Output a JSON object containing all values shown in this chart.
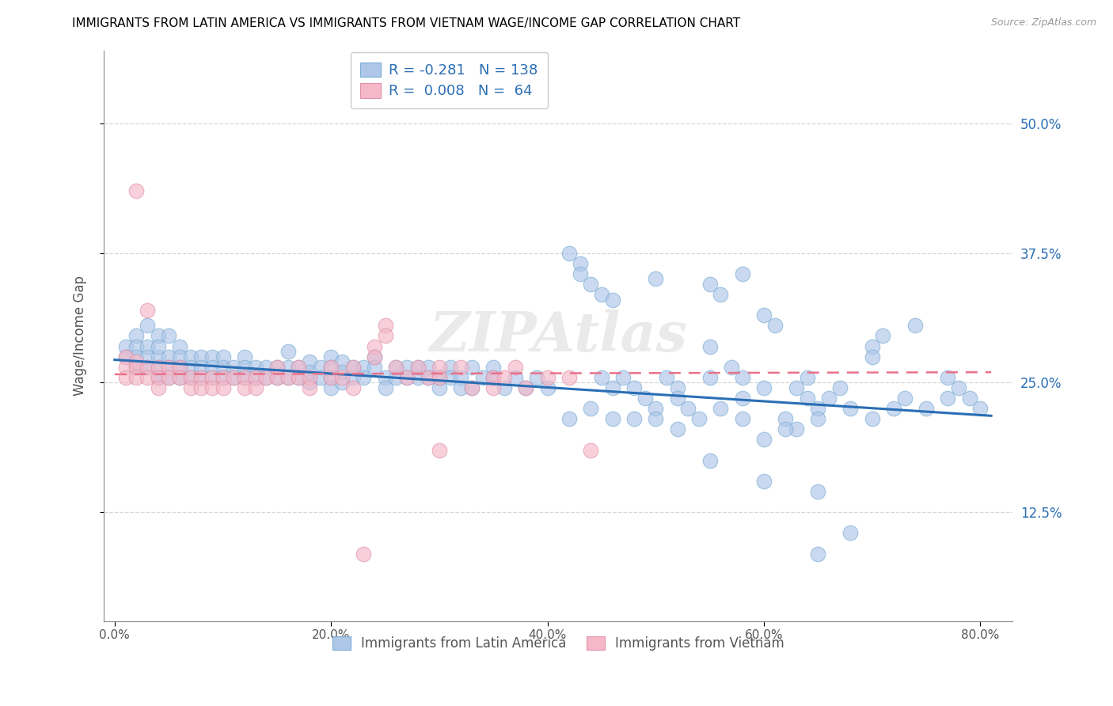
{
  "title": "IMMIGRANTS FROM LATIN AMERICA VS IMMIGRANTS FROM VIETNAM WAGE/INCOME GAP CORRELATION CHART",
  "source": "Source: ZipAtlas.com",
  "ylabel": "Wage/Income Gap",
  "xlabel_ticks": [
    "0.0%",
    "20.0%",
    "40.0%",
    "60.0%",
    "80.0%"
  ],
  "xlabel_vals": [
    0.0,
    0.2,
    0.4,
    0.6,
    0.8
  ],
  "ytick_labels": [
    "12.5%",
    "25.0%",
    "37.5%",
    "50.0%"
  ],
  "ytick_vals": [
    0.125,
    0.25,
    0.375,
    0.5
  ],
  "xlim": [
    -0.01,
    0.83
  ],
  "ylim": [
    0.02,
    0.57
  ],
  "legend_label1": "Immigrants from Latin America",
  "legend_label2": "Immigrants from Vietnam",
  "blue_color": "#aec6e8",
  "pink_color": "#f4b8c8",
  "blue_line_color": "#2a6eb5",
  "pink_line_color": "#e8728a",
  "watermark": "ZIPAtlas",
  "title_fontsize": 11,
  "source_fontsize": 9,
  "blue_scatter": [
    [
      0.01,
      0.285
    ],
    [
      0.01,
      0.275
    ],
    [
      0.02,
      0.295
    ],
    [
      0.02,
      0.285
    ],
    [
      0.02,
      0.275
    ],
    [
      0.02,
      0.265
    ],
    [
      0.03,
      0.305
    ],
    [
      0.03,
      0.285
    ],
    [
      0.03,
      0.275
    ],
    [
      0.03,
      0.265
    ],
    [
      0.04,
      0.295
    ],
    [
      0.04,
      0.275
    ],
    [
      0.04,
      0.265
    ],
    [
      0.04,
      0.255
    ],
    [
      0.04,
      0.285
    ],
    [
      0.05,
      0.295
    ],
    [
      0.05,
      0.275
    ],
    [
      0.05,
      0.265
    ],
    [
      0.05,
      0.255
    ],
    [
      0.06,
      0.285
    ],
    [
      0.06,
      0.275
    ],
    [
      0.06,
      0.265
    ],
    [
      0.06,
      0.255
    ],
    [
      0.07,
      0.275
    ],
    [
      0.07,
      0.265
    ],
    [
      0.07,
      0.255
    ],
    [
      0.08,
      0.275
    ],
    [
      0.08,
      0.265
    ],
    [
      0.08,
      0.255
    ],
    [
      0.09,
      0.275
    ],
    [
      0.09,
      0.265
    ],
    [
      0.09,
      0.255
    ],
    [
      0.1,
      0.275
    ],
    [
      0.1,
      0.265
    ],
    [
      0.1,
      0.255
    ],
    [
      0.11,
      0.265
    ],
    [
      0.11,
      0.255
    ],
    [
      0.12,
      0.275
    ],
    [
      0.12,
      0.265
    ],
    [
      0.12,
      0.255
    ],
    [
      0.13,
      0.265
    ],
    [
      0.13,
      0.255
    ],
    [
      0.14,
      0.265
    ],
    [
      0.14,
      0.255
    ],
    [
      0.15,
      0.265
    ],
    [
      0.15,
      0.255
    ],
    [
      0.16,
      0.28
    ],
    [
      0.16,
      0.265
    ],
    [
      0.16,
      0.255
    ],
    [
      0.17,
      0.265
    ],
    [
      0.17,
      0.255
    ],
    [
      0.18,
      0.27
    ],
    [
      0.18,
      0.26
    ],
    [
      0.18,
      0.25
    ],
    [
      0.19,
      0.265
    ],
    [
      0.19,
      0.255
    ],
    [
      0.2,
      0.275
    ],
    [
      0.2,
      0.265
    ],
    [
      0.2,
      0.255
    ],
    [
      0.2,
      0.245
    ],
    [
      0.21,
      0.27
    ],
    [
      0.21,
      0.26
    ],
    [
      0.21,
      0.25
    ],
    [
      0.22,
      0.265
    ],
    [
      0.22,
      0.255
    ],
    [
      0.23,
      0.265
    ],
    [
      0.23,
      0.255
    ],
    [
      0.24,
      0.275
    ],
    [
      0.24,
      0.265
    ],
    [
      0.25,
      0.255
    ],
    [
      0.25,
      0.245
    ],
    [
      0.26,
      0.265
    ],
    [
      0.26,
      0.255
    ],
    [
      0.27,
      0.265
    ],
    [
      0.27,
      0.255
    ],
    [
      0.28,
      0.265
    ],
    [
      0.28,
      0.255
    ],
    [
      0.29,
      0.265
    ],
    [
      0.29,
      0.255
    ],
    [
      0.3,
      0.245
    ],
    [
      0.3,
      0.255
    ],
    [
      0.31,
      0.265
    ],
    [
      0.31,
      0.255
    ],
    [
      0.32,
      0.255
    ],
    [
      0.32,
      0.245
    ],
    [
      0.33,
      0.265
    ],
    [
      0.33,
      0.245
    ],
    [
      0.34,
      0.255
    ],
    [
      0.35,
      0.265
    ],
    [
      0.35,
      0.255
    ],
    [
      0.36,
      0.245
    ],
    [
      0.37,
      0.255
    ],
    [
      0.38,
      0.245
    ],
    [
      0.39,
      0.255
    ],
    [
      0.4,
      0.245
    ],
    [
      0.42,
      0.375
    ],
    [
      0.43,
      0.365
    ],
    [
      0.43,
      0.355
    ],
    [
      0.44,
      0.345
    ],
    [
      0.45,
      0.335
    ],
    [
      0.45,
      0.255
    ],
    [
      0.46,
      0.33
    ],
    [
      0.46,
      0.245
    ],
    [
      0.47,
      0.255
    ],
    [
      0.48,
      0.245
    ],
    [
      0.49,
      0.235
    ],
    [
      0.5,
      0.35
    ],
    [
      0.5,
      0.225
    ],
    [
      0.51,
      0.255
    ],
    [
      0.52,
      0.245
    ],
    [
      0.52,
      0.235
    ],
    [
      0.53,
      0.225
    ],
    [
      0.55,
      0.345
    ],
    [
      0.55,
      0.285
    ],
    [
      0.55,
      0.255
    ],
    [
      0.56,
      0.335
    ],
    [
      0.57,
      0.265
    ],
    [
      0.58,
      0.355
    ],
    [
      0.58,
      0.255
    ],
    [
      0.58,
      0.235
    ],
    [
      0.6,
      0.315
    ],
    [
      0.6,
      0.245
    ],
    [
      0.61,
      0.305
    ],
    [
      0.62,
      0.215
    ],
    [
      0.63,
      0.205
    ],
    [
      0.63,
      0.245
    ],
    [
      0.64,
      0.255
    ],
    [
      0.64,
      0.235
    ],
    [
      0.65,
      0.145
    ],
    [
      0.65,
      0.225
    ],
    [
      0.65,
      0.215
    ],
    [
      0.66,
      0.235
    ],
    [
      0.67,
      0.245
    ],
    [
      0.68,
      0.225
    ],
    [
      0.7,
      0.285
    ],
    [
      0.7,
      0.275
    ],
    [
      0.7,
      0.215
    ],
    [
      0.71,
      0.295
    ],
    [
      0.72,
      0.225
    ],
    [
      0.73,
      0.235
    ],
    [
      0.74,
      0.305
    ],
    [
      0.75,
      0.225
    ],
    [
      0.77,
      0.235
    ],
    [
      0.77,
      0.255
    ],
    [
      0.78,
      0.245
    ],
    [
      0.79,
      0.235
    ],
    [
      0.8,
      0.225
    ],
    [
      0.55,
      0.175
    ],
    [
      0.6,
      0.155
    ],
    [
      0.65,
      0.085
    ],
    [
      0.68,
      0.105
    ],
    [
      0.42,
      0.215
    ],
    [
      0.44,
      0.225
    ],
    [
      0.46,
      0.215
    ],
    [
      0.48,
      0.215
    ],
    [
      0.5,
      0.215
    ],
    [
      0.52,
      0.205
    ],
    [
      0.54,
      0.215
    ],
    [
      0.56,
      0.225
    ],
    [
      0.58,
      0.215
    ],
    [
      0.6,
      0.195
    ],
    [
      0.62,
      0.205
    ]
  ],
  "pink_scatter": [
    [
      0.01,
      0.275
    ],
    [
      0.01,
      0.265
    ],
    [
      0.01,
      0.255
    ],
    [
      0.02,
      0.435
    ],
    [
      0.02,
      0.27
    ],
    [
      0.02,
      0.265
    ],
    [
      0.02,
      0.255
    ],
    [
      0.03,
      0.32
    ],
    [
      0.03,
      0.265
    ],
    [
      0.03,
      0.255
    ],
    [
      0.04,
      0.265
    ],
    [
      0.04,
      0.255
    ],
    [
      0.04,
      0.245
    ],
    [
      0.05,
      0.265
    ],
    [
      0.05,
      0.255
    ],
    [
      0.06,
      0.265
    ],
    [
      0.06,
      0.255
    ],
    [
      0.07,
      0.255
    ],
    [
      0.07,
      0.245
    ],
    [
      0.08,
      0.255
    ],
    [
      0.08,
      0.245
    ],
    [
      0.09,
      0.255
    ],
    [
      0.09,
      0.245
    ],
    [
      0.1,
      0.255
    ],
    [
      0.1,
      0.245
    ],
    [
      0.11,
      0.255
    ],
    [
      0.12,
      0.255
    ],
    [
      0.12,
      0.245
    ],
    [
      0.13,
      0.255
    ],
    [
      0.13,
      0.245
    ],
    [
      0.14,
      0.255
    ],
    [
      0.15,
      0.265
    ],
    [
      0.15,
      0.255
    ],
    [
      0.16,
      0.255
    ],
    [
      0.17,
      0.265
    ],
    [
      0.17,
      0.255
    ],
    [
      0.18,
      0.255
    ],
    [
      0.18,
      0.245
    ],
    [
      0.2,
      0.255
    ],
    [
      0.2,
      0.265
    ],
    [
      0.21,
      0.255
    ],
    [
      0.22,
      0.265
    ],
    [
      0.22,
      0.245
    ],
    [
      0.24,
      0.285
    ],
    [
      0.24,
      0.275
    ],
    [
      0.25,
      0.305
    ],
    [
      0.25,
      0.295
    ],
    [
      0.26,
      0.265
    ],
    [
      0.27,
      0.255
    ],
    [
      0.28,
      0.265
    ],
    [
      0.29,
      0.255
    ],
    [
      0.3,
      0.265
    ],
    [
      0.3,
      0.255
    ],
    [
      0.32,
      0.265
    ],
    [
      0.33,
      0.245
    ],
    [
      0.35,
      0.255
    ],
    [
      0.35,
      0.245
    ],
    [
      0.36,
      0.255
    ],
    [
      0.37,
      0.265
    ],
    [
      0.4,
      0.255
    ],
    [
      0.42,
      0.255
    ],
    [
      0.44,
      0.185
    ],
    [
      0.23,
      0.085
    ],
    [
      0.3,
      0.185
    ],
    [
      0.38,
      0.245
    ]
  ],
  "blue_line_x": [
    0.0,
    0.81
  ],
  "blue_line_y_start": 0.272,
  "blue_line_y_end": 0.218,
  "pink_line_x": [
    0.0,
    0.81
  ],
  "pink_line_y_start": 0.258,
  "pink_line_y_end": 0.26
}
